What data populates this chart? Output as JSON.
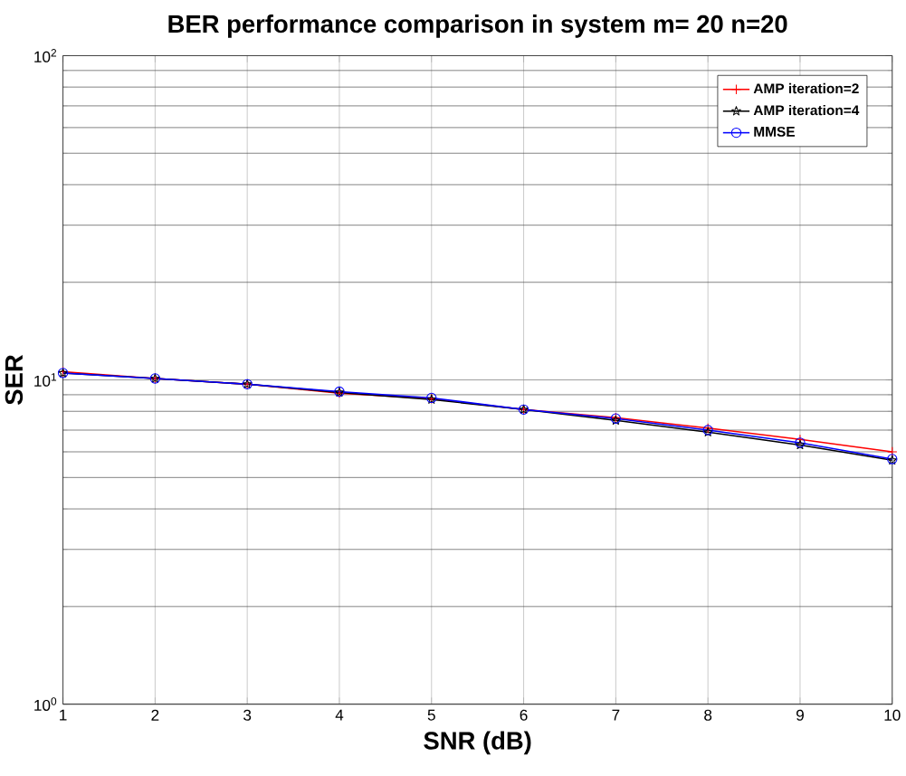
{
  "chart_data": {
    "type": "line",
    "title": "BER performance comparison in system m= 20  n=20",
    "xlabel": "SNR (dB)",
    "ylabel": "SER",
    "x": [
      1,
      2,
      3,
      4,
      5,
      6,
      7,
      8,
      9,
      10
    ],
    "series": [
      {
        "name": "AMP iteration=2",
        "color": "#ff0000",
        "marker": "cross",
        "values": [
          10.6,
          10.1,
          9.7,
          9.1,
          8.75,
          8.1,
          7.65,
          7.1,
          6.55,
          6.0
        ]
      },
      {
        "name": "AMP iteration=4",
        "color": "#000000",
        "marker": "star",
        "values": [
          10.5,
          10.1,
          9.7,
          9.15,
          8.7,
          8.1,
          7.5,
          6.9,
          6.3,
          5.65
        ]
      },
      {
        "name": "MMSE",
        "color": "#0000ff",
        "marker": "circle",
        "values": [
          10.5,
          10.1,
          9.7,
          9.2,
          8.8,
          8.1,
          7.6,
          7.0,
          6.4,
          5.7
        ]
      }
    ],
    "log": "y",
    "xlim": [
      1,
      10
    ],
    "ylim": [
      1,
      100
    ],
    "xticks": [
      1,
      2,
      3,
      4,
      5,
      6,
      7,
      8,
      9,
      10
    ],
    "yticks": [
      {
        "value": 1,
        "label": "10$^{0}$"
      },
      {
        "value": 10,
        "label": "10$^{1}$"
      },
      {
        "value": 100,
        "label": "10$^{2}$"
      }
    ],
    "grid": true,
    "legend": "top right",
    "line_style": "solid"
  }
}
